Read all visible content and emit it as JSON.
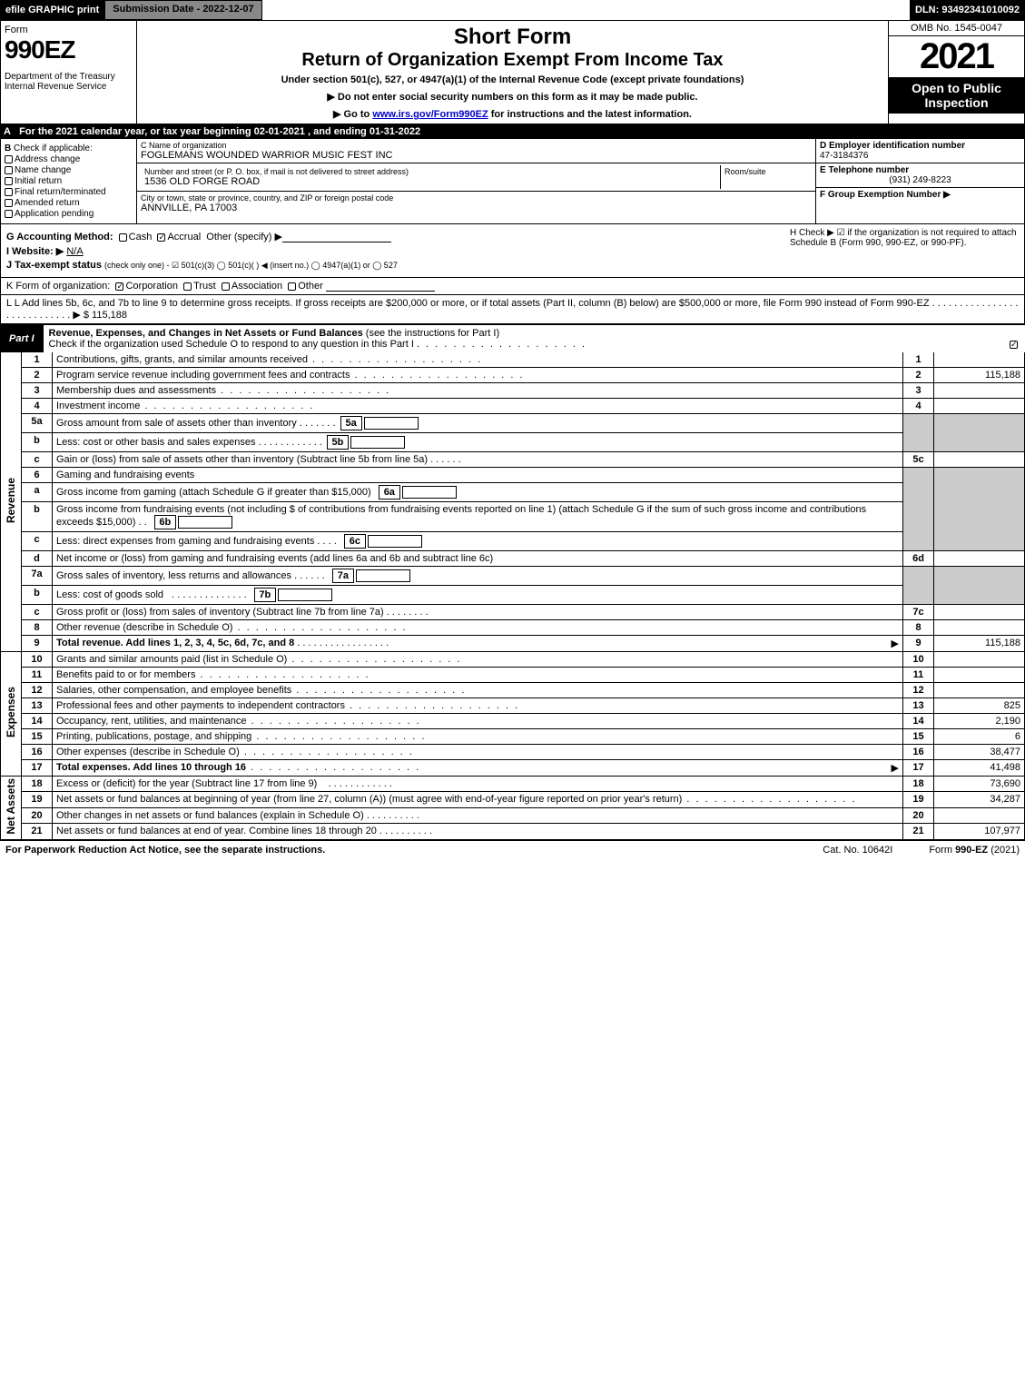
{
  "topbar": {
    "efile": "efile GRAPHIC print",
    "submission": "Submission Date - 2022-12-07",
    "dln": "DLN: 93492341010092"
  },
  "header": {
    "form_word": "Form",
    "form_number": "990EZ",
    "dept": "Department of the Treasury\nInternal Revenue Service",
    "short_form": "Short Form",
    "title": "Return of Organization Exempt From Income Tax",
    "under": "Under section 501(c), 527, or 4947(a)(1) of the Internal Revenue Code (except private foundations)",
    "note1": "▶ Do not enter social security numbers on this form as it may be made public.",
    "note2_pre": "▶ Go to ",
    "note2_link": "www.irs.gov/Form990EZ",
    "note2_post": " for instructions and the latest information.",
    "omb": "OMB No. 1545-0047",
    "year": "2021",
    "open": "Open to Public Inspection"
  },
  "row_a": "For the 2021 calendar year, or tax year beginning 02-01-2021 , and ending 01-31-2022",
  "section_b": {
    "header": "Check if applicable:",
    "items": [
      "Address change",
      "Name change",
      "Initial return",
      "Final return/terminated",
      "Amended return",
      "Application pending"
    ]
  },
  "section_c": {
    "name_label": "C Name of organization",
    "name": "FOGLEMANS WOUNDED WARRIOR MUSIC FEST INC",
    "street_label": "Number and street (or P. O. box, if mail is not delivered to street address)",
    "street": "1536 OLD FORGE ROAD",
    "room_label": "Room/suite",
    "city_label": "City or town, state or province, country, and ZIP or foreign postal code",
    "city": "ANNVILLE, PA  17003"
  },
  "section_d": {
    "label": "D Employer identification number",
    "value": "47-3184376"
  },
  "section_e": {
    "label": "E Telephone number",
    "value": "(931) 249-8223"
  },
  "section_f": {
    "label": "F Group Exemption Number  ▶",
    "value": ""
  },
  "section_g": {
    "label": "G Accounting Method:",
    "cash": "Cash",
    "accrual": "Accrual",
    "other": "Other (specify) ▶"
  },
  "section_h": {
    "text": "H  Check ▶ ☑ if the organization is not required to attach Schedule B (Form 990, 990-EZ, or 990-PF)."
  },
  "section_i": {
    "label": "I Website: ▶",
    "value": "N/A"
  },
  "section_j": {
    "label": "J Tax-exempt status",
    "sub": "(check only one) - ☑ 501(c)(3)  ◯ 501(c)(  ) ◀ (insert no.)  ◯ 4947(a)(1) or  ◯ 527"
  },
  "section_k": {
    "label": "K Form of organization:",
    "corp": "Corporation",
    "trust": "Trust",
    "assoc": "Association",
    "other": "Other"
  },
  "section_l": {
    "text": "L Add lines 5b, 6c, and 7b to line 9 to determine gross receipts. If gross receipts are $200,000 or more, or if total assets (Part II, column (B) below) are $500,000 or more, file Form 990 instead of Form 990-EZ  .  .  .  .  .  .  .  .  .  .  .  .  .  .  .  .  .  .  .  .  .  .  .  .  .  .  .  . ▶ $",
    "value": "115,188"
  },
  "part1": {
    "tab": "Part I",
    "title": "Revenue, Expenses, and Changes in Net Assets or Fund Balances",
    "instr": "(see the instructions for Part I)",
    "check": "Check if the organization used Schedule O to respond to any question in this Part I"
  },
  "rot": {
    "revenue": "Revenue",
    "expenses": "Expenses",
    "netassets": "Net Assets"
  },
  "lines": {
    "l1": "Contributions, gifts, grants, and similar amounts received",
    "l2": "Program service revenue including government fees and contracts",
    "l3": "Membership dues and assessments",
    "l4": "Investment income",
    "l5a": "Gross amount from sale of assets other than inventory",
    "l5b": "Less: cost or other basis and sales expenses",
    "l5c": "Gain or (loss) from sale of assets other than inventory (Subtract line 5b from line 5a)",
    "l6": "Gaming and fundraising events",
    "l6a": "Gross income from gaming (attach Schedule G if greater than $15,000)",
    "l6b": "Gross income from fundraising events (not including $                of contributions from fundraising events reported on line 1) (attach Schedule G if the sum of such gross income and contributions exceeds $15,000)",
    "l6c": "Less: direct expenses from gaming and fundraising events",
    "l6d": "Net income or (loss) from gaming and fundraising events (add lines 6a and 6b and subtract line 6c)",
    "l7a": "Gross sales of inventory, less returns and allowances",
    "l7b": "Less: cost of goods sold",
    "l7c": "Gross profit or (loss) from sales of inventory (Subtract line 7b from line 7a)",
    "l8": "Other revenue (describe in Schedule O)",
    "l9": "Total revenue. Add lines 1, 2, 3, 4, 5c, 6d, 7c, and 8",
    "l10": "Grants and similar amounts paid (list in Schedule O)",
    "l11": "Benefits paid to or for members",
    "l12": "Salaries, other compensation, and employee benefits",
    "l13": "Professional fees and other payments to independent contractors",
    "l14": "Occupancy, rent, utilities, and maintenance",
    "l15": "Printing, publications, postage, and shipping",
    "l16": "Other expenses (describe in Schedule O)",
    "l17": "Total expenses. Add lines 10 through 16",
    "l18": "Excess or (deficit) for the year (Subtract line 17 from line 9)",
    "l19": "Net assets or fund balances at beginning of year (from line 27, column (A)) (must agree with end-of-year figure reported on prior year's return)",
    "l20": "Other changes in net assets or fund balances (explain in Schedule O)",
    "l21": "Net assets or fund balances at end of year. Combine lines 18 through 20"
  },
  "amounts": {
    "l2": "115,188",
    "l9": "115,188",
    "l13": "825",
    "l14": "2,190",
    "l15": "6",
    "l16": "38,477",
    "l17": "41,498",
    "l18": "73,690",
    "l19": "34,287",
    "l21": "107,977"
  },
  "footer": {
    "left": "For Paperwork Reduction Act Notice, see the separate instructions.",
    "mid": "Cat. No. 10642I",
    "right_pre": "Form ",
    "right_bold": "990-EZ",
    "right_post": " (2021)"
  },
  "labels": {
    "b5a": "5a",
    "b5b": "5b",
    "b6a": "6a",
    "b6b": "6b",
    "b6c": "6c",
    "b7a": "7a",
    "b7b": "7b",
    "arrow": "▶"
  }
}
